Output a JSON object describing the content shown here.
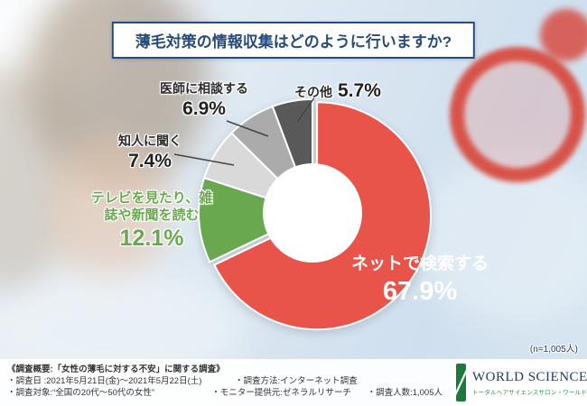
{
  "title": "薄毛対策の情報収集はどのように行いますか?",
  "sample_note": "(n=1,005人)",
  "chart_data": {
    "type": "pie",
    "donut": true,
    "title": "薄毛対策の情報収集はどのように行いますか?",
    "n": 1005,
    "start_angle_deg": 0,
    "direction": "clockwise",
    "segments": [
      {
        "label": "ネットで検索する",
        "value": 67.9,
        "pct_label": "67.9%",
        "color": "#e8534a",
        "exploded": true
      },
      {
        "label": "テレビを見たり、雑誌や新聞を読む",
        "value": 12.1,
        "pct_label": "12.1%",
        "color": "#6aa84f"
      },
      {
        "label": "知人に聞く",
        "value": 7.4,
        "pct_label": "7.4%",
        "color": "#d9d9d9"
      },
      {
        "label": "医師に相談する",
        "value": 6.9,
        "pct_label": "6.9%",
        "color": "#ababab"
      },
      {
        "label": "その他",
        "value": 5.7,
        "pct_label": "5.7%",
        "color": "#595959"
      }
    ]
  },
  "colors": {
    "title_navy": "#254a7c",
    "logo_green": "#1c7a3d",
    "accent_red": "#e8534a"
  },
  "footer": {
    "overview": "《調査概要:「女性の薄毛に対する不安」に関する調査》",
    "date": "・調査日    :2021年5月21日(金)〜2021年5月22日(土)",
    "target": "・調査対象:“全国の20代〜50代の女性”",
    "method": "・調査方法:インターネット調査",
    "monitor": "・モニター提供元:ゼネラルリサーチ",
    "count": "・調査人数:1,005人"
  },
  "logo": {
    "name": "WORLD SCIENCE",
    "tagline": "トータルヘアサイエンスサロン・ワールドヘアサイエンス"
  }
}
